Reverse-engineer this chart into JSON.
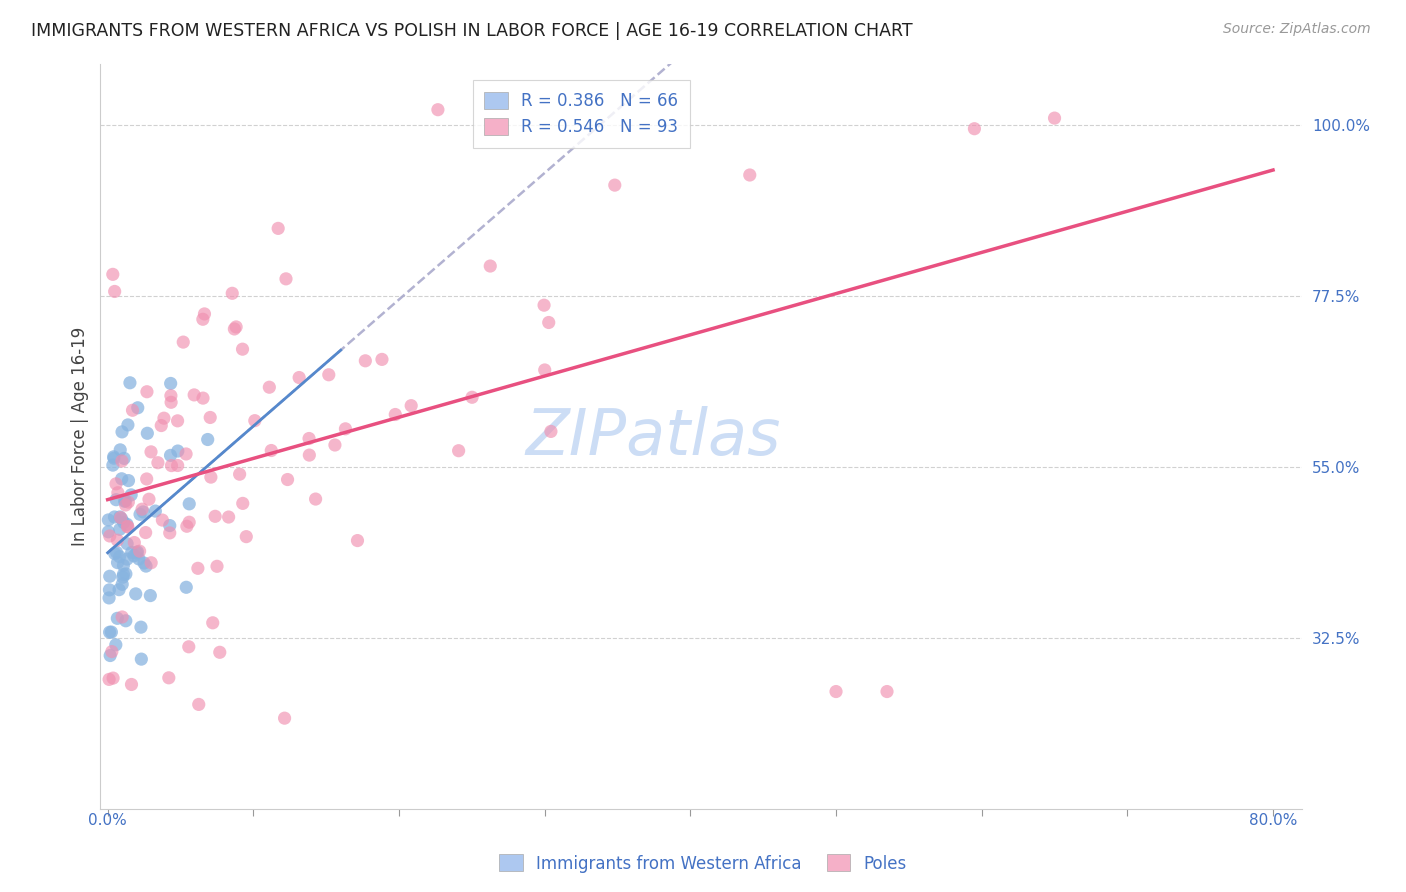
{
  "title": "IMMIGRANTS FROM WESTERN AFRICA VS POLISH IN LABOR FORCE | AGE 16-19 CORRELATION CHART",
  "source": "Source: ZipAtlas.com",
  "ylabel": "In Labor Force | Age 16-19",
  "xlim": [
    -0.005,
    0.82
  ],
  "ylim": [
    0.1,
    1.08
  ],
  "yticks": [
    0.325,
    0.55,
    0.775,
    1.0
  ],
  "ytick_labels": [
    "32.5%",
    "55.0%",
    "77.5%",
    "100.0%"
  ],
  "xtick_left_label": "0.0%",
  "xtick_right_label": "80.0%",
  "legend1_label": "R = 0.386   N = 66",
  "legend2_label": "R = 0.546   N = 93",
  "legend1_color": "#adc8f0",
  "legend2_color": "#f5b0c8",
  "blue_scatter_color": "#88b4e0",
  "pink_scatter_color": "#f090b0",
  "blue_line_color": "#5588cc",
  "pink_line_color": "#e85080",
  "gray_dash_color": "#aaaacc",
  "axis_color": "#4472c4",
  "watermark": "ZIPatlas",
  "watermark_color": "#ccddf5",
  "background_color": "#ffffff",
  "grid_color": "#cccccc",
  "blue_N": 66,
  "pink_N": 93,
  "blue_R": 0.386,
  "pink_R": 0.546
}
